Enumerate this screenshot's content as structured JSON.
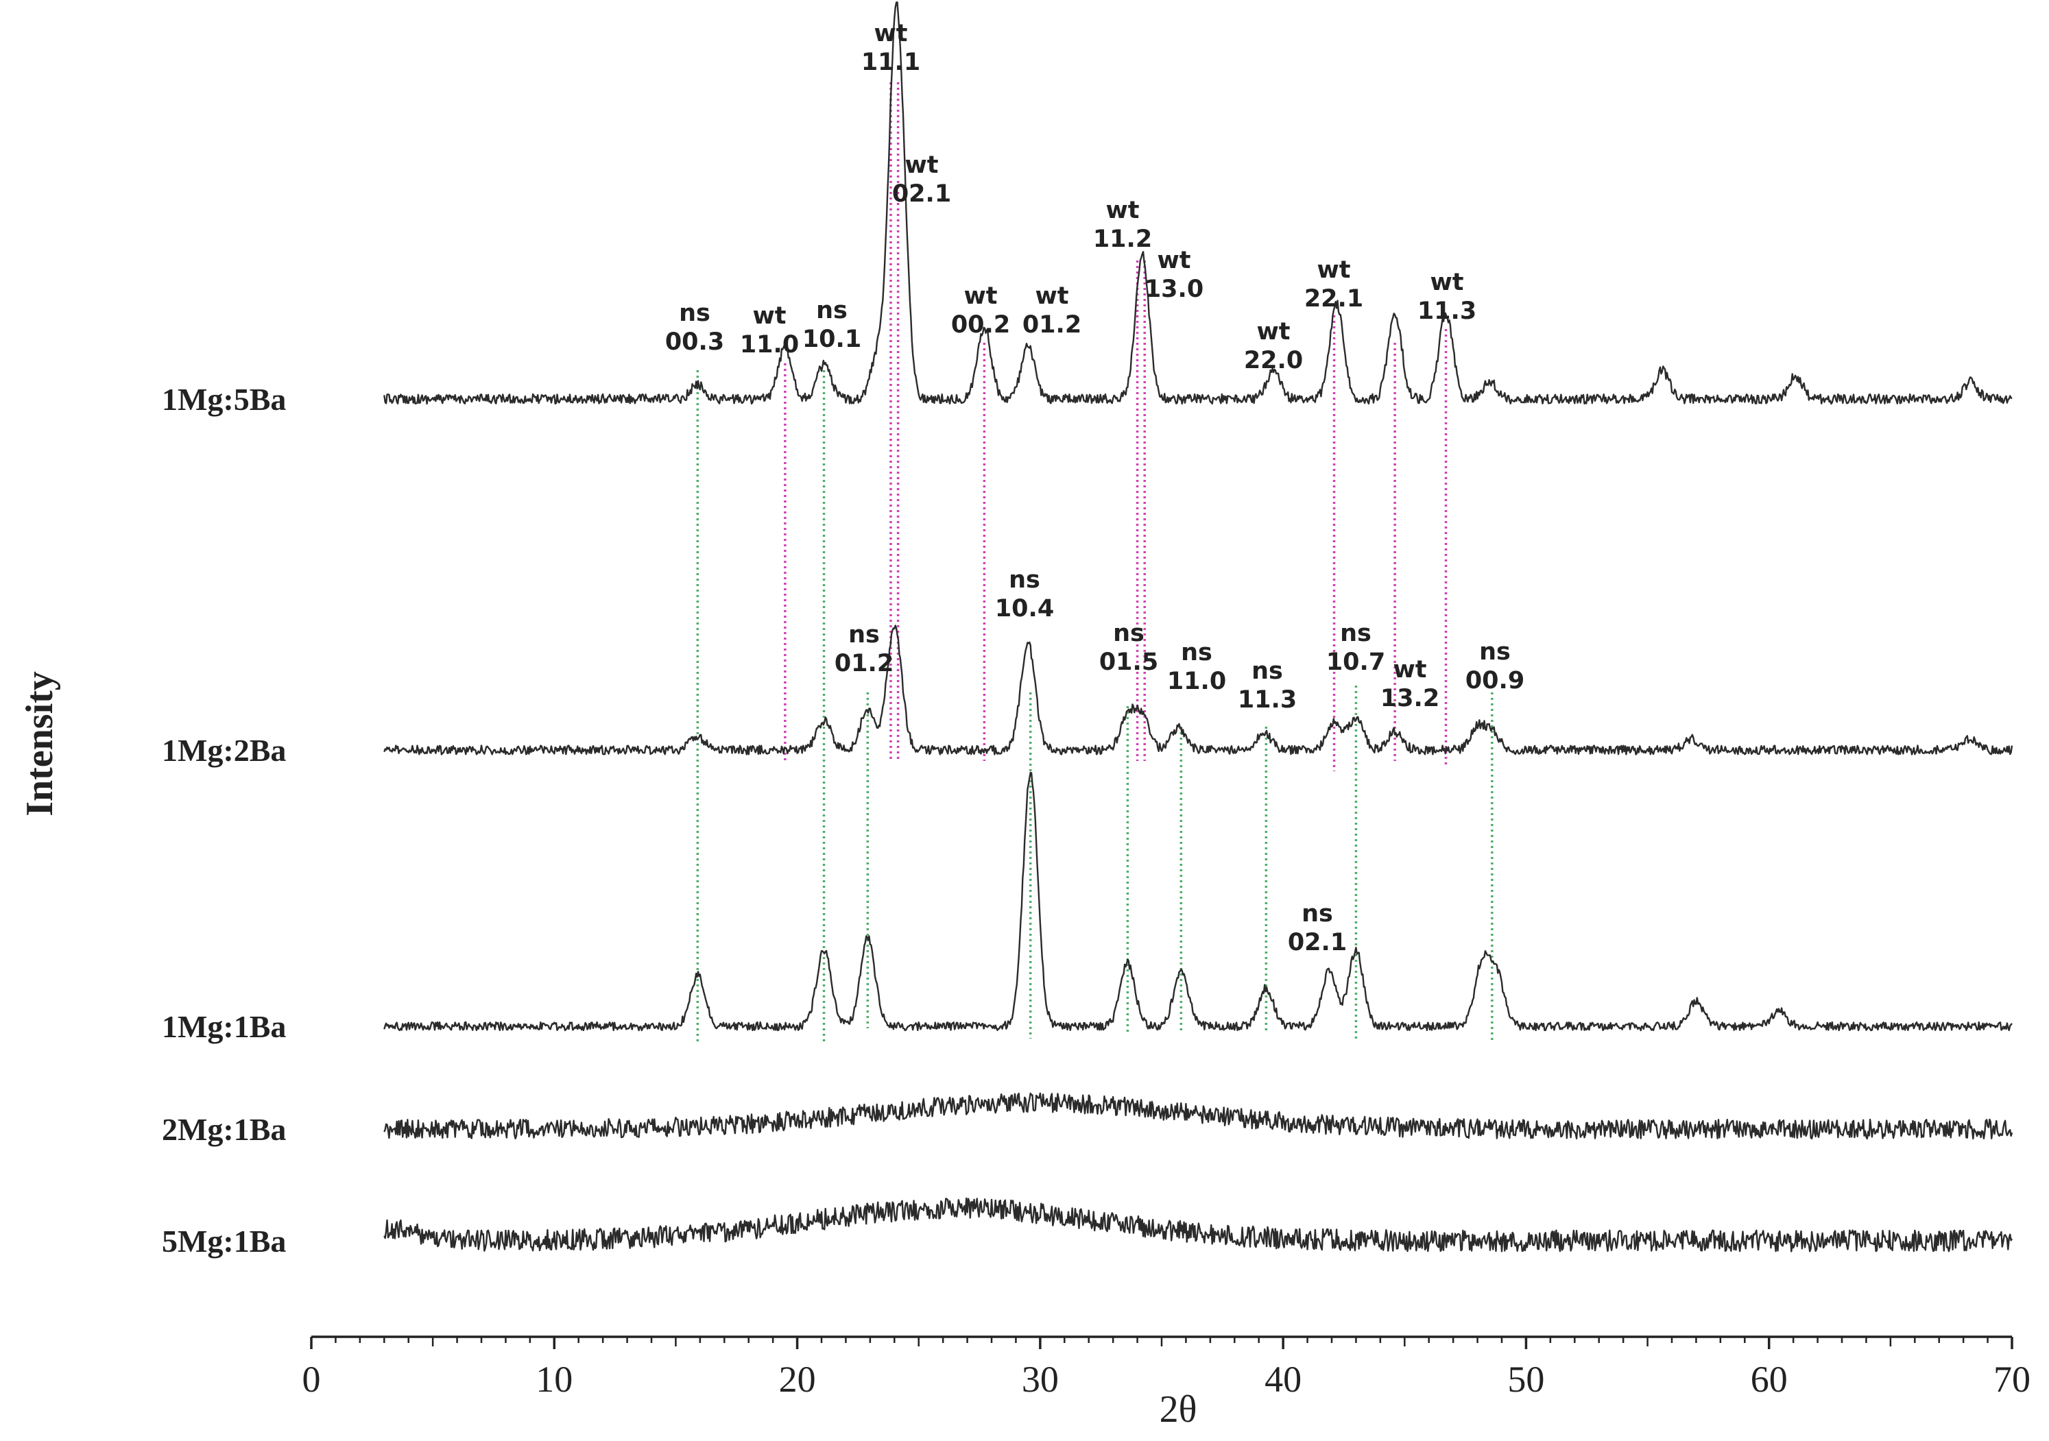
{
  "chart_data": {
    "type": "line",
    "title": "",
    "xlabel": "2θ",
    "ylabel": "Intensity",
    "xlim": [
      0,
      70
    ],
    "x_ticks": [
      "0",
      "10",
      "20",
      "30",
      "40",
      "50",
      "60",
      "70"
    ],
    "grid": false,
    "legend": "none (traces labelled at left)",
    "line_color": "#2b2b2b",
    "ns_line_color": "#4fae6a",
    "wt_line_color": "#d23fb4",
    "series": [
      {
        "name": "1Mg:5Ba",
        "peaks": [
          {
            "x": 15.9,
            "h": 0.05
          },
          {
            "x": 19.5,
            "h": 0.18
          },
          {
            "x": 21.1,
            "h": 0.12
          },
          {
            "x": 23.3,
            "h": 0.15
          },
          {
            "x": 24.0,
            "h": 1.0
          },
          {
            "x": 24.3,
            "h": 0.55
          },
          {
            "x": 27.7,
            "h": 0.25
          },
          {
            "x": 29.5,
            "h": 0.18
          },
          {
            "x": 34.2,
            "h": 0.5
          },
          {
            "x": 39.6,
            "h": 0.1
          },
          {
            "x": 42.2,
            "h": 0.33
          },
          {
            "x": 44.6,
            "h": 0.3
          },
          {
            "x": 46.7,
            "h": 0.3
          },
          {
            "x": 48.5,
            "h": 0.06
          },
          {
            "x": 55.6,
            "h": 0.1
          },
          {
            "x": 61.1,
            "h": 0.08
          },
          {
            "x": 68.3,
            "h": 0.06
          }
        ]
      },
      {
        "name": "1Mg:2Ba",
        "peaks": [
          {
            "x": 15.9,
            "h": 0.06
          },
          {
            "x": 21.1,
            "h": 0.13
          },
          {
            "x": 22.9,
            "h": 0.18
          },
          {
            "x": 24.0,
            "h": 0.55
          },
          {
            "x": 29.5,
            "h": 0.47
          },
          {
            "x": 33.6,
            "h": 0.15
          },
          {
            "x": 34.2,
            "h": 0.15
          },
          {
            "x": 35.7,
            "h": 0.1
          },
          {
            "x": 39.2,
            "h": 0.08
          },
          {
            "x": 42.1,
            "h": 0.12
          },
          {
            "x": 43.0,
            "h": 0.14
          },
          {
            "x": 44.6,
            "h": 0.08
          },
          {
            "x": 48.0,
            "h": 0.1
          },
          {
            "x": 48.6,
            "h": 0.08
          },
          {
            "x": 56.8,
            "h": 0.05
          },
          {
            "x": 68.3,
            "h": 0.05
          }
        ]
      },
      {
        "name": "1Mg:1Ba",
        "peaks": [
          {
            "x": 15.9,
            "h": 0.2
          },
          {
            "x": 21.1,
            "h": 0.3
          },
          {
            "x": 22.9,
            "h": 0.35
          },
          {
            "x": 29.6,
            "h": 1.0
          },
          {
            "x": 33.6,
            "h": 0.25
          },
          {
            "x": 35.8,
            "h": 0.22
          },
          {
            "x": 39.3,
            "h": 0.15
          },
          {
            "x": 41.9,
            "h": 0.22
          },
          {
            "x": 43.0,
            "h": 0.3
          },
          {
            "x": 48.2,
            "h": 0.25
          },
          {
            "x": 48.8,
            "h": 0.2
          },
          {
            "x": 57.0,
            "h": 0.1
          },
          {
            "x": 60.4,
            "h": 0.06
          }
        ]
      },
      {
        "name": "2Mg:1Ba",
        "peaks": [
          {
            "x": 29.6,
            "h": 0.35
          }
        ]
      },
      {
        "name": "5Mg:1Ba",
        "peaks": [
          {
            "x": 26.5,
            "h": 0.45
          }
        ]
      }
    ],
    "annotations": [
      {
        "phase": "ns",
        "index": "00.3",
        "x": 15.9
      },
      {
        "phase": "wt",
        "index": "11.0",
        "x": 19.5
      },
      {
        "phase": "ns",
        "index": "10.1",
        "x": 21.1
      },
      {
        "phase": "wt",
        "index": "11.1",
        "x": 24.0
      },
      {
        "phase": "wt",
        "index": "02.1",
        "x": 24.3
      },
      {
        "phase": "wt",
        "index": "00.2",
        "x": 27.7
      },
      {
        "phase": "wt",
        "index": "01.2",
        "x": 29.6
      },
      {
        "phase": "wt",
        "index": "11.2",
        "x": 34.1
      },
      {
        "phase": "wt",
        "index": "13.0",
        "x": 34.3
      },
      {
        "phase": "wt",
        "index": "22.0",
        "x": 39.6
      },
      {
        "phase": "wt",
        "index": "22.1",
        "x": 42.2
      },
      {
        "phase": "wt",
        "index": "11.3",
        "x": 46.7
      },
      {
        "phase": "ns",
        "index": "01.2",
        "x": 22.9
      },
      {
        "phase": "ns",
        "index": "10.4",
        "x": 29.6
      },
      {
        "phase": "ns",
        "index": "01.5",
        "x": 33.6
      },
      {
        "phase": "ns",
        "index": "11.0",
        "x": 35.8
      },
      {
        "phase": "ns",
        "index": "11.3",
        "x": 39.3
      },
      {
        "phase": "ns",
        "index": "10.7",
        "x": 43.0
      },
      {
        "phase": "wt",
        "index": "13.2",
        "x": 44.6
      },
      {
        "phase": "ns",
        "index": "00.9",
        "x": 48.6
      },
      {
        "phase": "ns",
        "index": "02.1",
        "x": 41.9
      }
    ]
  }
}
